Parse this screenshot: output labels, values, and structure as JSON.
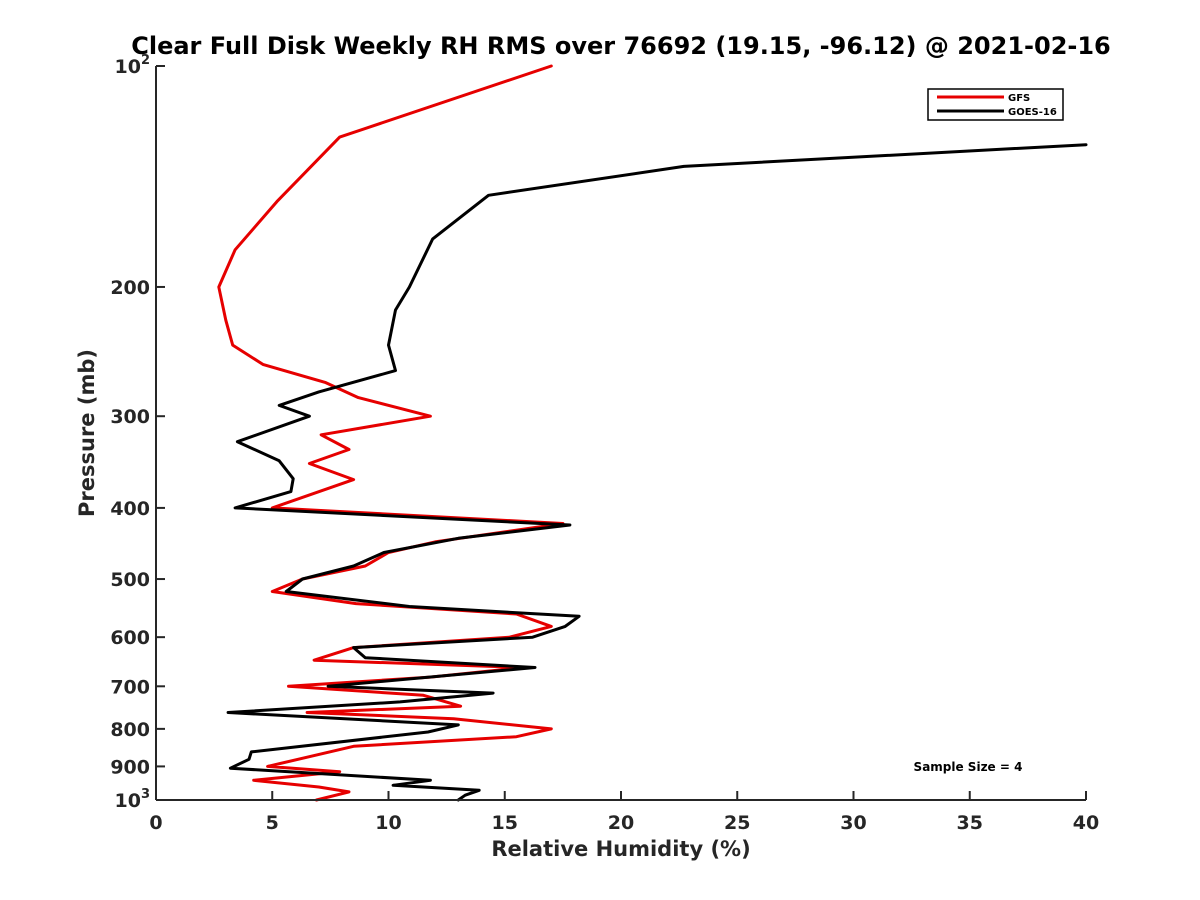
{
  "chart_data": {
    "type": "line",
    "title": "Clear Full Disk Weekly RH RMS over 76692 (19.15, -96.12) @ 2021-02-16",
    "xlabel": "Relative Humidity (%)",
    "ylabel": "Pressure (mb)",
    "xlim": [
      0,
      40
    ],
    "ylim": [
      100,
      1000
    ],
    "yscale": "log",
    "y_reversed": true,
    "x_ticks": [
      0,
      5,
      10,
      15,
      20,
      25,
      30,
      35,
      40
    ],
    "x_tick_labels": [
      "0",
      "5",
      "10",
      "15",
      "20",
      "25",
      "30",
      "35",
      "40"
    ],
    "y_ticks": [
      {
        "value": 100,
        "base": "10",
        "exp": "2"
      },
      {
        "value": 200,
        "base": "200",
        "exp": ""
      },
      {
        "value": 300,
        "base": "300",
        "exp": ""
      },
      {
        "value": 400,
        "base": "400",
        "exp": ""
      },
      {
        "value": 500,
        "base": "500",
        "exp": ""
      },
      {
        "value": 600,
        "base": "600",
        "exp": ""
      },
      {
        "value": 700,
        "base": "700",
        "exp": ""
      },
      {
        "value": 800,
        "base": "800",
        "exp": ""
      },
      {
        "value": 900,
        "base": "900",
        "exp": ""
      },
      {
        "value": 1000,
        "base": "10",
        "exp": "3"
      }
    ],
    "legend_position": "top-right",
    "annotation": "Sample Size = 4",
    "series": [
      {
        "name": "GFS",
        "color": "#e60000",
        "points": [
          [
            17.0,
            100
          ],
          [
            7.9,
            125
          ],
          [
            5.2,
            153
          ],
          [
            3.4,
            178
          ],
          [
            2.7,
            200
          ],
          [
            3.0,
            222
          ],
          [
            3.3,
            240
          ],
          [
            4.6,
            255
          ],
          [
            7.3,
            270
          ],
          [
            8.7,
            283
          ],
          [
            11.8,
            300
          ],
          [
            7.1,
            318
          ],
          [
            8.3,
            333
          ],
          [
            6.6,
            348
          ],
          [
            8.5,
            366
          ],
          [
            5.0,
            400
          ],
          [
            17.5,
            420
          ],
          [
            12.0,
            445
          ],
          [
            10.0,
            460
          ],
          [
            9.0,
            480
          ],
          [
            6.3,
            500
          ],
          [
            5.0,
            520
          ],
          [
            8.6,
            540
          ],
          [
            15.5,
            558
          ],
          [
            17.0,
            580
          ],
          [
            15.2,
            600
          ],
          [
            8.5,
            620
          ],
          [
            6.8,
            645
          ],
          [
            15.8,
            660
          ],
          [
            11.8,
            680
          ],
          [
            5.7,
            700
          ],
          [
            11.5,
            720
          ],
          [
            13.1,
            745
          ],
          [
            6.5,
            760
          ],
          [
            12.8,
            775
          ],
          [
            17.0,
            800
          ],
          [
            15.5,
            820
          ],
          [
            8.5,
            845
          ],
          [
            6.8,
            870
          ],
          [
            4.8,
            900
          ],
          [
            7.9,
            915
          ],
          [
            4.2,
            940
          ],
          [
            7.0,
            960
          ],
          [
            8.3,
            975
          ],
          [
            6.9,
            1000
          ]
        ]
      },
      {
        "name": "GOES-16",
        "color": "#000000",
        "points": [
          [
            40.0,
            128
          ],
          [
            22.7,
            137
          ],
          [
            14.3,
            150
          ],
          [
            11.9,
            172
          ],
          [
            10.9,
            200
          ],
          [
            10.3,
            215
          ],
          [
            10.0,
            240
          ],
          [
            10.3,
            260
          ],
          [
            7.0,
            278
          ],
          [
            5.3,
            290
          ],
          [
            6.6,
            300
          ],
          [
            3.5,
            325
          ],
          [
            5.3,
            345
          ],
          [
            5.9,
            365
          ],
          [
            5.8,
            380
          ],
          [
            3.4,
            400
          ],
          [
            17.8,
            422
          ],
          [
            13.0,
            440
          ],
          [
            9.8,
            460
          ],
          [
            8.5,
            480
          ],
          [
            6.3,
            500
          ],
          [
            5.6,
            520
          ],
          [
            10.9,
            545
          ],
          [
            18.2,
            562
          ],
          [
            17.6,
            580
          ],
          [
            16.2,
            600
          ],
          [
            8.5,
            620
          ],
          [
            9.0,
            640
          ],
          [
            16.3,
            660
          ],
          [
            7.4,
            700
          ],
          [
            14.5,
            715
          ],
          [
            10.5,
            735
          ],
          [
            3.1,
            760
          ],
          [
            13.0,
            790
          ],
          [
            11.7,
            808
          ],
          [
            4.1,
            860
          ],
          [
            4.0,
            880
          ],
          [
            3.2,
            905
          ],
          [
            11.8,
            940
          ],
          [
            10.2,
            955
          ],
          [
            13.9,
            970
          ],
          [
            13.3,
            985
          ],
          [
            13.0,
            1000
          ]
        ]
      }
    ]
  }
}
